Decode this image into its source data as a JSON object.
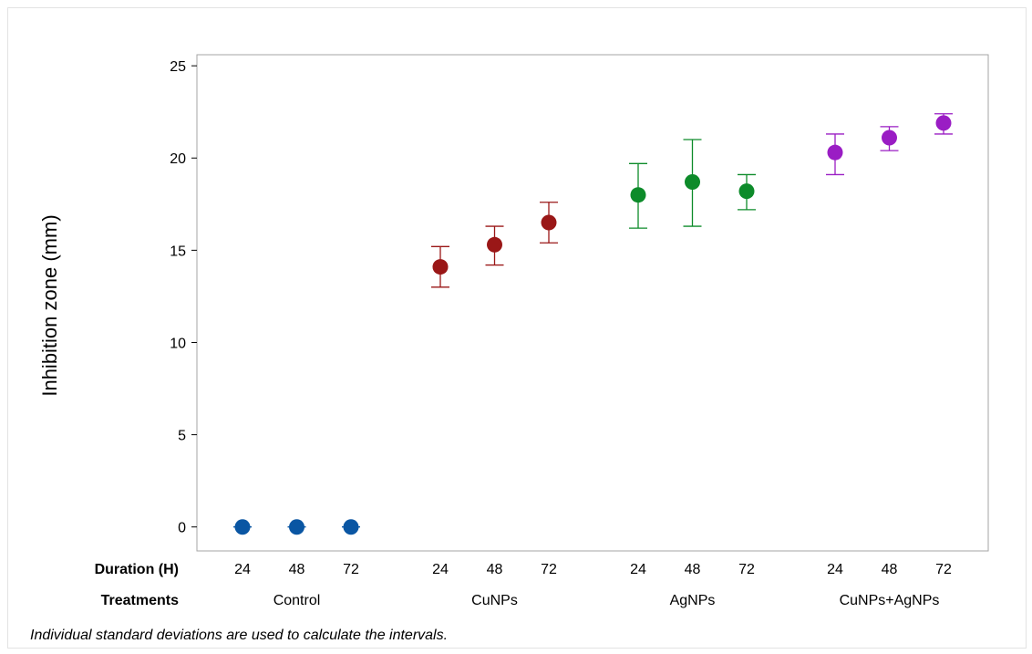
{
  "chart_data": {
    "type": "scatter",
    "subtype": "interval plot with error bars",
    "ylabel": "Inhibition zone (mm)",
    "ylim": [
      -1.3,
      25.6
    ],
    "yticks": [
      0,
      5,
      10,
      15,
      20,
      25
    ],
    "ytick_labels": [
      "0",
      "5",
      "10",
      "15",
      "20",
      "25"
    ],
    "grid": false,
    "row_labels": {
      "duration": "Duration (H)",
      "treatments": "Treatments"
    },
    "groups": [
      {
        "name": "Control",
        "color": "#0a56a3",
        "points": [
          {
            "duration": "24",
            "mean": 0,
            "lower": 0,
            "upper": 0
          },
          {
            "duration": "48",
            "mean": 0,
            "lower": 0,
            "upper": 0
          },
          {
            "duration": "72",
            "mean": 0,
            "lower": 0,
            "upper": 0
          }
        ]
      },
      {
        "name": "CuNPs",
        "color": "#9a1717",
        "points": [
          {
            "duration": "24",
            "mean": 14.1,
            "lower": 13.0,
            "upper": 15.2
          },
          {
            "duration": "48",
            "mean": 15.3,
            "lower": 14.2,
            "upper": 16.3
          },
          {
            "duration": "72",
            "mean": 16.5,
            "lower": 15.4,
            "upper": 17.6
          }
        ]
      },
      {
        "name": "AgNPs",
        "color": "#0d8b2a",
        "points": [
          {
            "duration": "24",
            "mean": 18.0,
            "lower": 16.2,
            "upper": 19.7
          },
          {
            "duration": "48",
            "mean": 18.7,
            "lower": 16.3,
            "upper": 21.0
          },
          {
            "duration": "72",
            "mean": 18.2,
            "lower": 17.2,
            "upper": 19.1
          }
        ]
      },
      {
        "name": "CuNPs+AgNPs",
        "color": "#9a1dc4",
        "points": [
          {
            "duration": "24",
            "mean": 20.3,
            "lower": 19.1,
            "upper": 21.3
          },
          {
            "duration": "48",
            "mean": 21.1,
            "lower": 20.4,
            "upper": 21.7
          },
          {
            "duration": "72",
            "mean": 21.9,
            "lower": 21.3,
            "upper": 22.4
          }
        ]
      }
    ],
    "footnote": "Individual standard deviations are used to calculate the intervals."
  }
}
